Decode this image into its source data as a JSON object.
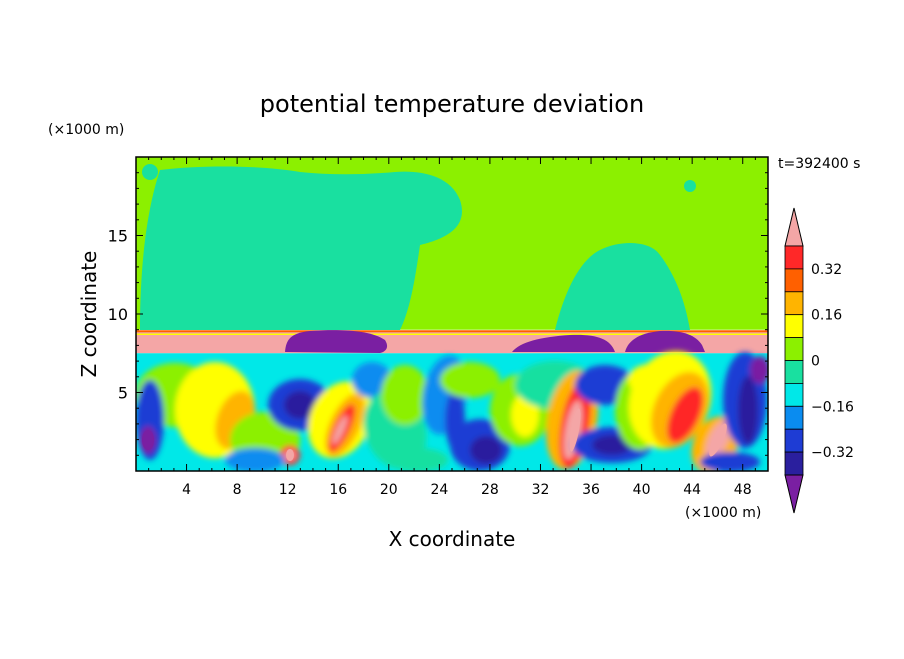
{
  "chart_data": {
    "type": "heatmap",
    "title": "potential temperature deviation",
    "xlabel": "X coordinate",
    "ylabel": "Z coordinate",
    "x_unit": "(×1000 m)",
    "y_unit": "(×1000 m)",
    "time_label": "t=392400 s",
    "xlim": [
      0,
      50
    ],
    "ylim": [
      0,
      20
    ],
    "x_ticks": [
      4,
      8,
      12,
      16,
      20,
      24,
      28,
      32,
      36,
      40,
      44,
      48
    ],
    "y_ticks": [
      5,
      10,
      15
    ],
    "colorbar": {
      "labels": [
        "0.32",
        "0.16",
        "0",
        "−0.16",
        "−0.32"
      ],
      "label_values": [
        0.32,
        0.16,
        0,
        -0.16,
        -0.32
      ],
      "levels": [
        -0.4,
        -0.32,
        -0.24,
        -0.16,
        -0.08,
        0,
        0.08,
        0.16,
        0.24,
        0.32,
        0.4
      ],
      "colors": [
        "#7a1fa2",
        "#2a1f9e",
        "#1e3cd4",
        "#0a8cf0",
        "#00e8e8",
        "#19e0a0",
        "#8cf000",
        "#ffff00",
        "#ffb400",
        "#ff6000",
        "#ff2828",
        "#f4a6a6"
      ]
    },
    "field_description_regions": {
      "upper_layer_z": [
        9,
        20
      ],
      "inversion_z": [
        7.5,
        8.9
      ],
      "boundary_layer_z": [
        0,
        7.5
      ]
    }
  }
}
